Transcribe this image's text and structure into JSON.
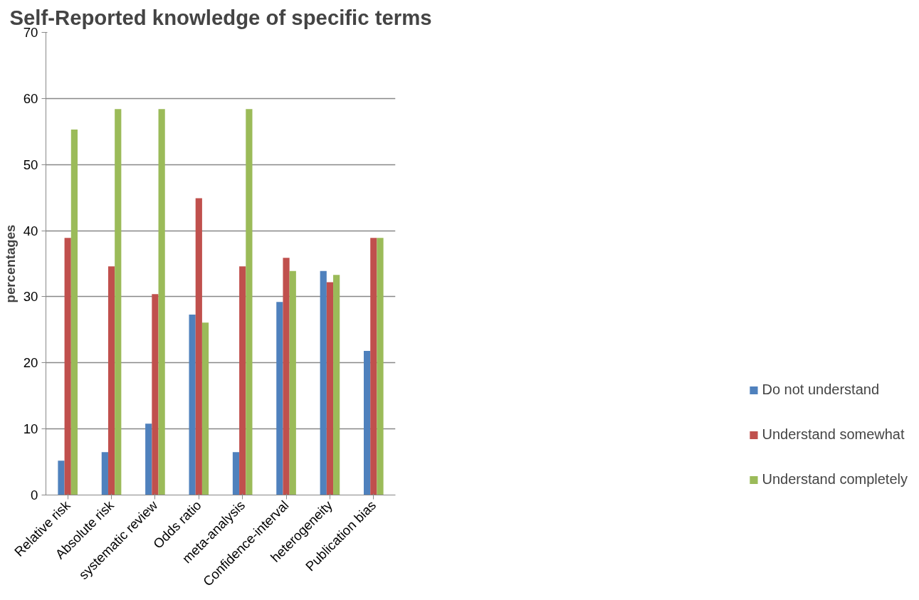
{
  "chart_data": {
    "type": "bar",
    "title": "Self-Reported knowledge of specific terms",
    "ylabel": "percentages",
    "categories": [
      "Relative risk",
      "Absolute risk",
      "systematic review",
      "Odds ratio",
      "meta-analysis",
      "Confidence-interval",
      "heterogeneity",
      "Publication bias"
    ],
    "series": [
      {
        "name": "Do not understand",
        "color": "#4f81bd",
        "values": [
          5.2,
          6.5,
          10.8,
          27.3,
          6.5,
          29.2,
          33.9,
          21.8
        ]
      },
      {
        "name": "Understand somewhat",
        "color": "#c0504d",
        "values": [
          38.9,
          34.6,
          30.4,
          44.9,
          34.6,
          35.9,
          32.2,
          38.9
        ]
      },
      {
        "name": "Understand completely",
        "color": "#9bbb59",
        "values": [
          55.3,
          58.4,
          58.4,
          26.1,
          58.4,
          33.9,
          33.3,
          38.9
        ]
      }
    ],
    "ylim": [
      0,
      70
    ],
    "yticks": [
      0,
      10,
      20,
      30,
      40,
      50,
      60,
      70
    ],
    "grid": "y",
    "legend": "bottom right"
  }
}
